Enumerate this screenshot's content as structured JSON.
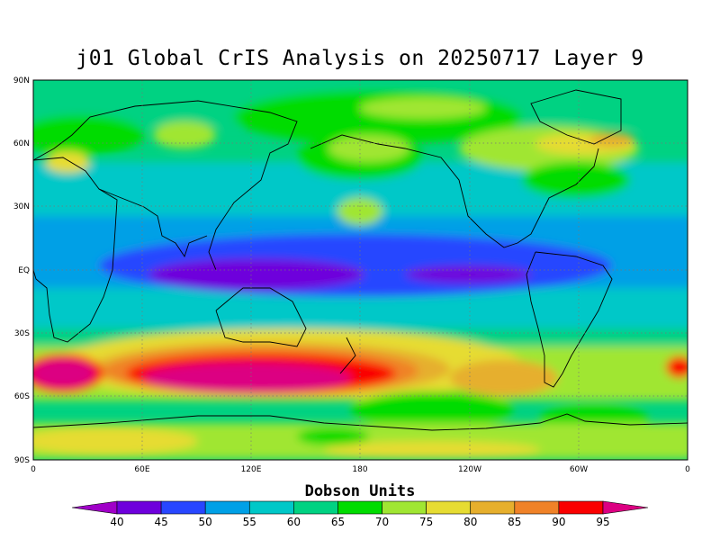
{
  "title": "j01 Global CrIS Analysis on 20250717 Layer 9",
  "axes": {
    "lat_labels": [
      "90N",
      "60N",
      "30N",
      "EQ",
      "30S",
      "60S",
      "90S"
    ],
    "lon_labels": [
      "0",
      "60E",
      "120E",
      "180",
      "120W",
      "60W",
      "0"
    ]
  },
  "colorbar": {
    "title": "Dobson Units",
    "levels": [
      "40",
      "45",
      "50",
      "55",
      "60",
      "65",
      "70",
      "75",
      "80",
      "85",
      "90",
      "95"
    ],
    "colors": [
      "#a000c8",
      "#6e00dc",
      "#2846ff",
      "#00a0e6",
      "#00c8c8",
      "#00d282",
      "#00dc00",
      "#a0e632",
      "#e6dc32",
      "#e6af2d",
      "#f08228",
      "#fa0000",
      "#dc0082"
    ]
  },
  "map": {
    "background_color": "#00d282",
    "grid": true
  }
}
